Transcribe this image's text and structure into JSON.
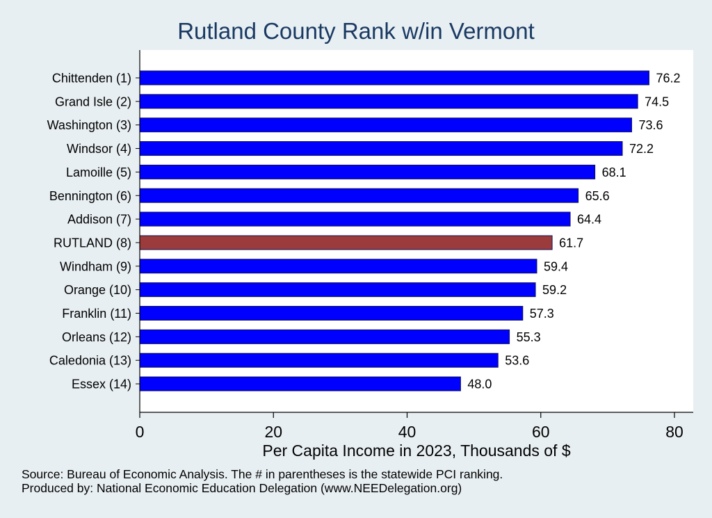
{
  "chart_data": {
    "type": "bar",
    "orientation": "horizontal",
    "title": "Rutland County Rank w/in Vermont",
    "xlabel": "Per Capita Income in 2023, Thousands of $",
    "ylabel": "",
    "xlim": [
      0,
      80
    ],
    "xticks": [
      "0",
      "20",
      "40",
      "60",
      "80"
    ],
    "grid": false,
    "categories": [
      "Chittenden  (1)",
      "Grand Isle  (2)",
      "Washington  (3)",
      "Windsor  (4)",
      "Lamoille  (5)",
      "Bennington  (6)",
      "Addison  (7)",
      "RUTLAND  (8)",
      "Windham  (9)",
      "Orange (10)",
      "Franklin (11)",
      "Orleans (12)",
      "Caledonia (13)",
      "Essex (14)"
    ],
    "values": [
      76.2,
      74.5,
      73.6,
      72.2,
      68.1,
      65.6,
      64.4,
      61.7,
      59.4,
      59.2,
      57.3,
      55.3,
      53.6,
      48.0
    ],
    "value_labels": [
      "76.2",
      "74.5",
      "73.6",
      "72.2",
      "68.1",
      "65.6",
      "64.4",
      "61.7",
      "59.4",
      "59.2",
      "57.3",
      "55.3",
      "53.6",
      "48.0"
    ],
    "highlight_category": "RUTLAND  (8)",
    "colors": {
      "bar": "#0000ff",
      "highlight": "#9b3b3b",
      "bar_edge": "#10105a",
      "plot_background": "#ffffff",
      "page_background": "#e8eff2",
      "title": "#1a3a63"
    }
  },
  "notes": {
    "source": "Source: Bureau of Economic Analysis. The # in parentheses is the statewide PCI ranking.",
    "produced": "Produced by: National Economic Education Delegation (www.NEEDelegation.org)"
  }
}
